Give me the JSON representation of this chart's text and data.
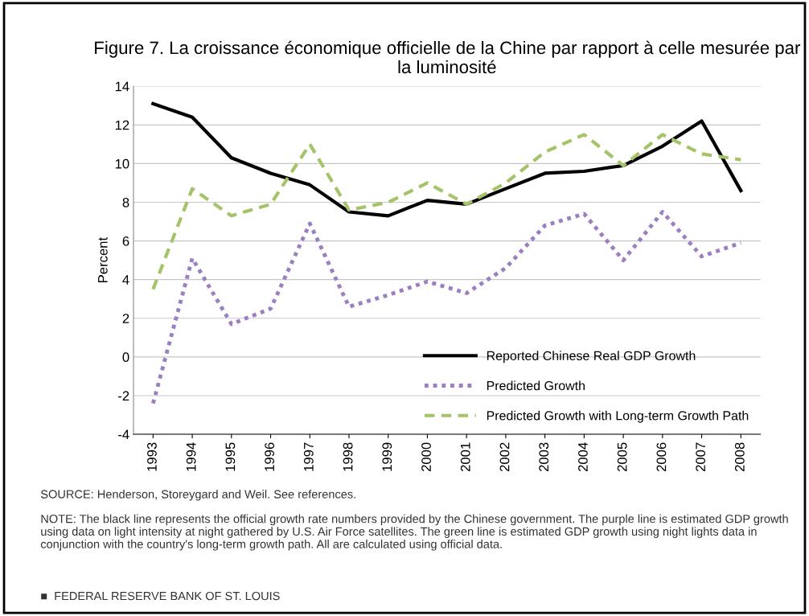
{
  "chart_data": {
    "type": "line",
    "title": "Figure 7. La croissance économique officielle de la Chine par rapport à celle mesurée par la luminosité",
    "ylabel": "Percent",
    "categories": [
      "1993",
      "1994",
      "1995",
      "1996",
      "1997",
      "1998",
      "1999",
      "2000",
      "2001",
      "2002",
      "2003",
      "2004",
      "2005",
      "2006",
      "2007",
      "2008"
    ],
    "series": [
      {
        "name": "Reported Chinese Real GDP Growth",
        "color": "#000000",
        "line_style": "solid",
        "values": [
          13.1,
          12.4,
          10.3,
          9.5,
          8.9,
          7.5,
          7.3,
          8.1,
          7.9,
          8.7,
          9.5,
          9.6,
          9.9,
          10.9,
          12.2,
          8.6
        ]
      },
      {
        "name": "Predicted Growth",
        "color": "#9b7fc0",
        "line_style": "dotted",
        "values": [
          -2.4,
          5.1,
          1.7,
          2.5,
          6.9,
          2.6,
          3.2,
          3.9,
          3.3,
          4.6,
          6.8,
          7.4,
          5.0,
          7.5,
          5.2,
          5.9
        ]
      },
      {
        "name": "Predicted Growth with Long-term Growth Path",
        "color": "#a5c46a",
        "line_style": "dashed",
        "values": [
          3.5,
          8.7,
          7.3,
          7.9,
          11.0,
          7.6,
          8.0,
          9.0,
          7.9,
          9.0,
          10.6,
          11.5,
          9.9,
          11.5,
          10.5,
          10.2
        ]
      }
    ],
    "ylim": [
      -4,
      14
    ],
    "yticks": [
      -4,
      -2,
      0,
      2,
      4,
      6,
      8,
      10,
      12,
      14
    ],
    "grid": "y",
    "legend": "bottom right",
    "marker": "none",
    "annotations": [
      "SOURCE: Henderson, Storeygard and Weil. See references.",
      "NOTE: The black line represents the official growth rate numbers provided by the Chinese government. The purple line is estimated GDP growth using data on light intensity at night gathered by U.S. Air Force satellites. The green line is estimated GDP growth using night lights data in conjunction with the country's long-term growth path. All are calculated using official data.",
      "■  FEDERAL RESERVE BANK OF ST. LOUIS"
    ]
  }
}
